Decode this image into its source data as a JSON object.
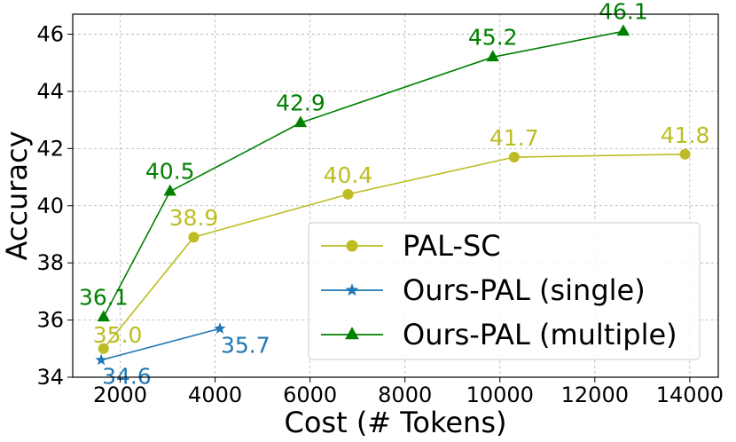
{
  "chart_data": {
    "type": "line",
    "title": "",
    "xlabel": "Cost (# Tokens)",
    "ylabel": "Accuracy",
    "xlim": [
      1000,
      14600
    ],
    "ylim": [
      34,
      46.7
    ],
    "x_ticks": [
      "2000",
      "4000",
      "6000",
      "8000",
      "10000",
      "12000",
      "14000"
    ],
    "y_ticks": [
      "34",
      "36",
      "38",
      "40",
      "42",
      "44",
      "46"
    ],
    "grid": true,
    "legend_placement": "lower-right",
    "series": [
      {
        "name": "PAL-SC",
        "color": "#bcbd22",
        "marker": "circle",
        "points": [
          {
            "x": 1650,
            "y": 35.0,
            "label": "35.0"
          },
          {
            "x": 3550,
            "y": 38.9,
            "label": "38.9"
          },
          {
            "x": 6800,
            "y": 40.4,
            "label": "40.4"
          },
          {
            "x": 10300,
            "y": 41.7,
            "label": "41.7"
          },
          {
            "x": 13900,
            "y": 41.8,
            "label": "41.8"
          }
        ]
      },
      {
        "name": "Ours-PAL (single)",
        "color": "#1f77b4",
        "marker": "star",
        "points": [
          {
            "x": 1600,
            "y": 34.6,
            "label": "34.6"
          },
          {
            "x": 4100,
            "y": 35.7,
            "label": "35.7"
          }
        ]
      },
      {
        "name": "Ours-PAL (multiple)",
        "color": "#008000",
        "marker": "triangle",
        "points": [
          {
            "x": 1650,
            "y": 36.1,
            "label": "36.1"
          },
          {
            "x": 3050,
            "y": 40.5,
            "label": "40.5"
          },
          {
            "x": 5800,
            "y": 42.9,
            "label": "42.9"
          },
          {
            "x": 9850,
            "y": 45.2,
            "label": "45.2"
          },
          {
            "x": 12600,
            "y": 46.1,
            "label": "46.1"
          }
        ]
      }
    ]
  }
}
